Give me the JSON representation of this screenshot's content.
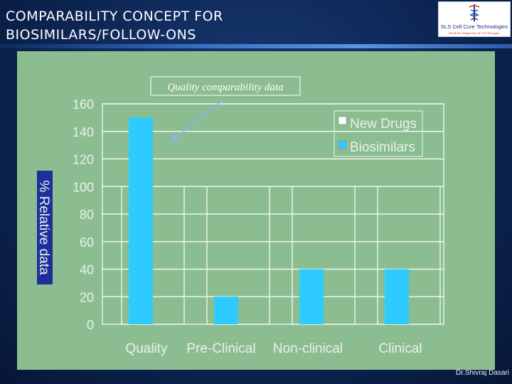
{
  "slide": {
    "title_line1": "COMPARABILITY CONCEPT  FOR",
    "title_line2": "BIOSIMILARS/FOLLOW-ONS",
    "logo_text": "SLS Cell Cure Technologies",
    "logo_tagline": "Predictive Diagnostics & Cell Therapies",
    "footer": "Dr.Shivraj Dasari"
  },
  "colors": {
    "panel": "#8bbd91",
    "bar": "#2ecbff",
    "axis_text": "#e8f2ea",
    "ylabel_bg": "#1e2e9c"
  },
  "chart_data": {
    "type": "bar",
    "categories": [
      "Quality",
      "Pre-Clinical",
      "Non-clinical",
      "Clinical"
    ],
    "series": [
      {
        "name": "New Drugs",
        "values": [
          0,
          0,
          0,
          0
        ],
        "color": "#ffffff"
      },
      {
        "name": "Biosimilars",
        "values": [
          150,
          20,
          40,
          40
        ],
        "color": "#2ecbff"
      }
    ],
    "yticks": [
      "0",
      "20",
      "40",
      "60",
      "80",
      "100",
      "120",
      "140",
      "160"
    ],
    "ylim": [
      0,
      160
    ],
    "xlabel": "",
    "ylabel": "% Relative data",
    "legend_position": "top-right",
    "grid": true,
    "annotation": {
      "text": "Quality comparability data",
      "target_category": "Quality",
      "target_value": 150
    }
  }
}
